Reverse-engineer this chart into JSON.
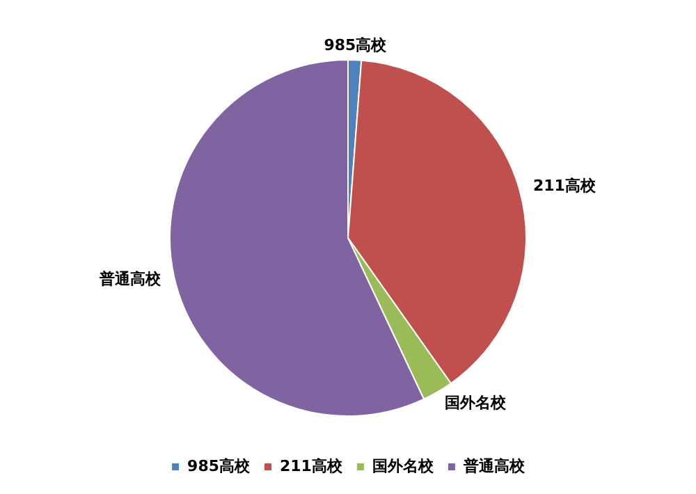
{
  "chart_data": {
    "type": "pie",
    "categories": [
      "985高校",
      "211高校",
      "国外名校",
      "普通高校"
    ],
    "values": [
      1.2,
      39,
      2.8,
      57
    ],
    "colors": [
      "#4f81bd",
      "#c0504d",
      "#9bbb59",
      "#8064a2"
    ],
    "legend": "bottom"
  }
}
